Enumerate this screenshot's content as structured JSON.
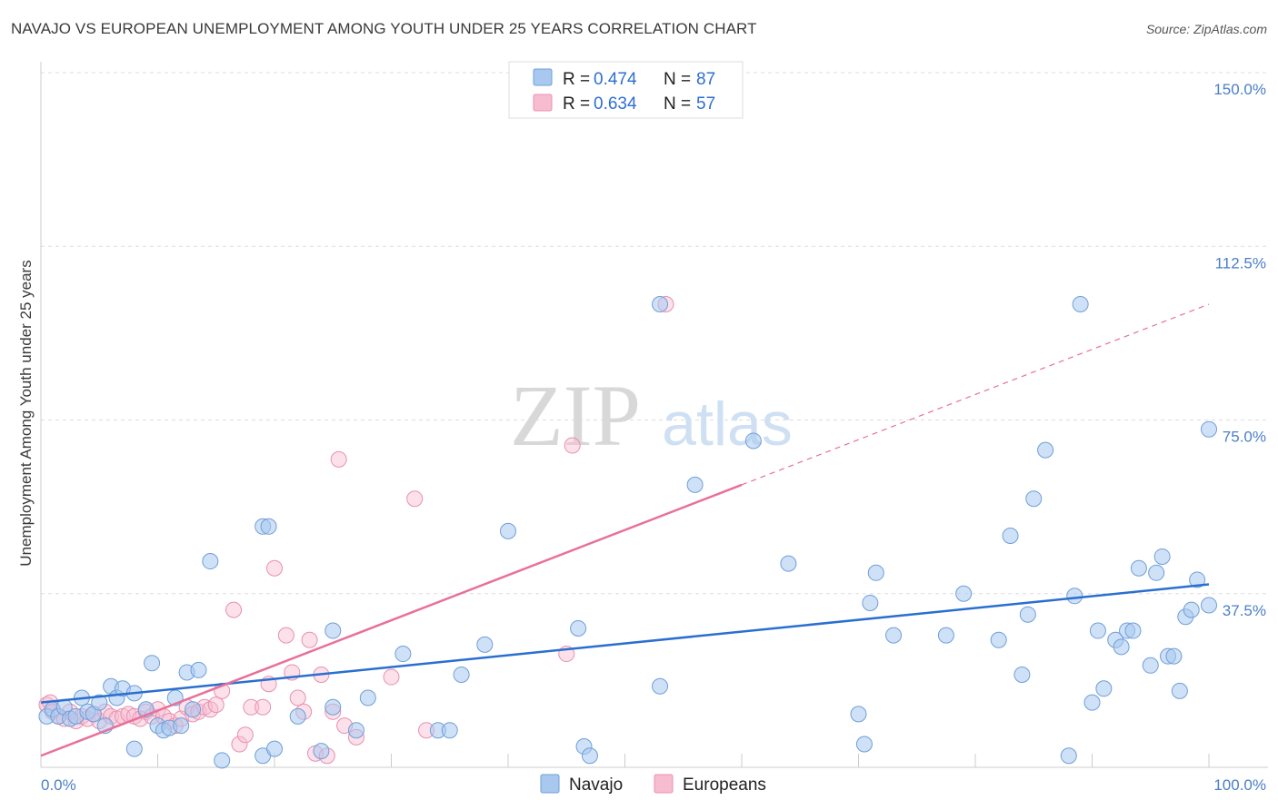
{
  "title": "NAVAJO VS EUROPEAN UNEMPLOYMENT AMONG YOUTH UNDER 25 YEARS CORRELATION CHART",
  "source": "Source: ZipAtlas.com",
  "watermark": {
    "zip": "ZIP",
    "atlas": "atlas"
  },
  "colors": {
    "navajo_fill": "#a8c8f0",
    "navajo_stroke": "#6f9fd8",
    "navajo_line": "#2a6fd0",
    "european_fill": "#f8bcd0",
    "european_stroke": "#e890b0",
    "european_line": "#e8709a",
    "tick_text": "#4a7fc8",
    "grid": "#dddddd"
  },
  "legend": {
    "r_label": "R =",
    "n_label": "N =",
    "rows": [
      {
        "series": "Navajo",
        "r": "0.474",
        "n": "87"
      },
      {
        "series": "Europeans",
        "r": "0.634",
        "n": "57"
      }
    ]
  },
  "chart_data": {
    "type": "scatter",
    "title": "NAVAJO VS EUROPEAN UNEMPLOYMENT AMONG YOUTH UNDER 25 YEARS CORRELATION CHART",
    "xlabel": "",
    "ylabel": "Unemployment Among Youth under 25 years",
    "xlim": [
      0,
      100
    ],
    "ylim": [
      0,
      150
    ],
    "x_tick_labels": [
      "0.0%",
      "100.0%"
    ],
    "y_ticks": [
      37.5,
      75.0,
      112.5,
      150.0
    ],
    "y_tick_labels": [
      "37.5%",
      "75.0%",
      "112.5%",
      "150.0%"
    ],
    "grid": true,
    "legend_position": "top-center",
    "series": [
      {
        "name": "Navajo",
        "trend": {
          "x0": 0,
          "y0": 14,
          "x1": 100,
          "y1": 39.5
        },
        "points": [
          [
            0.5,
            11
          ],
          [
            1,
            12.5
          ],
          [
            1.5,
            11
          ],
          [
            2,
            13
          ],
          [
            2.5,
            10.5
          ],
          [
            3,
            11
          ],
          [
            3.5,
            15
          ],
          [
            4,
            12
          ],
          [
            4.5,
            11.5
          ],
          [
            5,
            14
          ],
          [
            5.5,
            9
          ],
          [
            6,
            17.5
          ],
          [
            6.5,
            15
          ],
          [
            7,
            17
          ],
          [
            8,
            16
          ],
          [
            8,
            4
          ],
          [
            9,
            12.5
          ],
          [
            9.5,
            22.5
          ],
          [
            10,
            9
          ],
          [
            10.5,
            8
          ],
          [
            11,
            8.5
          ],
          [
            11.5,
            15
          ],
          [
            12,
            9
          ],
          [
            12.5,
            20.5
          ],
          [
            13,
            12.5
          ],
          [
            13.5,
            21
          ],
          [
            14.5,
            44.5
          ],
          [
            15.5,
            1.5
          ],
          [
            19,
            52
          ],
          [
            19.5,
            52
          ],
          [
            19,
            2.5
          ],
          [
            20,
            4
          ],
          [
            22,
            11
          ],
          [
            24,
            3.5
          ],
          [
            25,
            13
          ],
          [
            25,
            29.5
          ],
          [
            27,
            8
          ],
          [
            28,
            15
          ],
          [
            31,
            24.5
          ],
          [
            34,
            8
          ],
          [
            35,
            8
          ],
          [
            36,
            20
          ],
          [
            38,
            26.5
          ],
          [
            40,
            51
          ],
          [
            46,
            30
          ],
          [
            46.5,
            4.5
          ],
          [
            47,
            2.5
          ],
          [
            53,
            17.5
          ],
          [
            53,
            100
          ],
          [
            56,
            61
          ],
          [
            61,
            70.5
          ],
          [
            64,
            44
          ],
          [
            70,
            11.5
          ],
          [
            71,
            35.5
          ],
          [
            70.5,
            5
          ],
          [
            71.5,
            42
          ],
          [
            73,
            28.5
          ],
          [
            77.5,
            28.5
          ],
          [
            79,
            37.5
          ],
          [
            82,
            27.5
          ],
          [
            83,
            50
          ],
          [
            84,
            20
          ],
          [
            84.5,
            33
          ],
          [
            85,
            58
          ],
          [
            86,
            68.5
          ],
          [
            88,
            2.5
          ],
          [
            88.5,
            37
          ],
          [
            89,
            100
          ],
          [
            90,
            14
          ],
          [
            90.5,
            29.5
          ],
          [
            91,
            17
          ],
          [
            92,
            27.5
          ],
          [
            92.5,
            26
          ],
          [
            93,
            29.5
          ],
          [
            93.5,
            29.5
          ],
          [
            94,
            43
          ],
          [
            95,
            22
          ],
          [
            95.5,
            42
          ],
          [
            96,
            45.5
          ],
          [
            96.5,
            24
          ],
          [
            97,
            24
          ],
          [
            97.5,
            16.5
          ],
          [
            98,
            32.5
          ],
          [
            98.5,
            34
          ],
          [
            99,
            40.5
          ],
          [
            100,
            35
          ],
          [
            100,
            73
          ]
        ]
      },
      {
        "name": "Europeans",
        "trend": {
          "x0": 0,
          "y0": 2.5,
          "x1": 60,
          "y1": 61,
          "dashed_to_x": 100,
          "dashed_to_y": 100
        },
        "points": [
          [
            0.5,
            13.5
          ],
          [
            0.8,
            14
          ],
          [
            1,
            12
          ],
          [
            1.5,
            11
          ],
          [
            2,
            10.5
          ],
          [
            2.5,
            12
          ],
          [
            3,
            10
          ],
          [
            3.5,
            11
          ],
          [
            4,
            10.5
          ],
          [
            4.5,
            11.5
          ],
          [
            5,
            10
          ],
          [
            5.5,
            12
          ],
          [
            6,
            11
          ],
          [
            6.5,
            10.5
          ],
          [
            7,
            11
          ],
          [
            7.5,
            11.5
          ],
          [
            8,
            11
          ],
          [
            8.5,
            10.5
          ],
          [
            9,
            12
          ],
          [
            9.5,
            11
          ],
          [
            10,
            12.5
          ],
          [
            10.5,
            11
          ],
          [
            11,
            10
          ],
          [
            11.5,
            9
          ],
          [
            12,
            10.5
          ],
          [
            12.5,
            13
          ],
          [
            13,
            11.5
          ],
          [
            13.5,
            12
          ],
          [
            14,
            13
          ],
          [
            14.5,
            12.5
          ],
          [
            15,
            13.5
          ],
          [
            15.5,
            16.5
          ],
          [
            16.5,
            34
          ],
          [
            17,
            5
          ],
          [
            17.5,
            7
          ],
          [
            18,
            13
          ],
          [
            19,
            13
          ],
          [
            19.5,
            18
          ],
          [
            20,
            43
          ],
          [
            21,
            28.5
          ],
          [
            21.5,
            20.5
          ],
          [
            22,
            15
          ],
          [
            22.5,
            12
          ],
          [
            23,
            27.5
          ],
          [
            23.5,
            3
          ],
          [
            24,
            20
          ],
          [
            24.5,
            2.5
          ],
          [
            25,
            12
          ],
          [
            25.5,
            66.5
          ],
          [
            26,
            9
          ],
          [
            27,
            6.5
          ],
          [
            30,
            19.5
          ],
          [
            32,
            58
          ],
          [
            33,
            8
          ],
          [
            45,
            24.5
          ],
          [
            45.5,
            69.5
          ],
          [
            53.5,
            100
          ]
        ]
      }
    ]
  },
  "bottom_legend": [
    {
      "label": "Navajo"
    },
    {
      "label": "Europeans"
    }
  ]
}
